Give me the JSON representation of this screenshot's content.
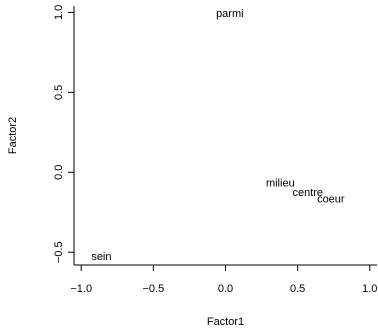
{
  "chart_data": {
    "type": "scatter",
    "title": "",
    "xlabel": "Factor1",
    "ylabel": "Factor2",
    "xlim": [
      -1.05,
      1.05
    ],
    "ylim": [
      -0.58,
      1.04
    ],
    "x_ticks": [
      -1.0,
      -0.5,
      0.0,
      0.5,
      1.0
    ],
    "x_tick_labels": [
      "−1.0",
      "−0.5",
      "0.0",
      "0.5",
      "1.0"
    ],
    "y_ticks": [
      -0.5,
      0.0,
      0.5,
      1.0
    ],
    "y_tick_labels": [
      "−0.5",
      "0.0",
      "0.5",
      "1.0"
    ],
    "grid": false,
    "marker": "text-labels",
    "points": [
      {
        "label": "parmi",
        "x": 0.03,
        "y": 0.99
      },
      {
        "label": "milieu",
        "x": 0.38,
        "y": -0.07
      },
      {
        "label": "centre",
        "x": 0.57,
        "y": -0.13
      },
      {
        "label": "coeur",
        "x": 0.73,
        "y": -0.17
      },
      {
        "label": "sein",
        "x": -0.86,
        "y": -0.53
      }
    ]
  }
}
